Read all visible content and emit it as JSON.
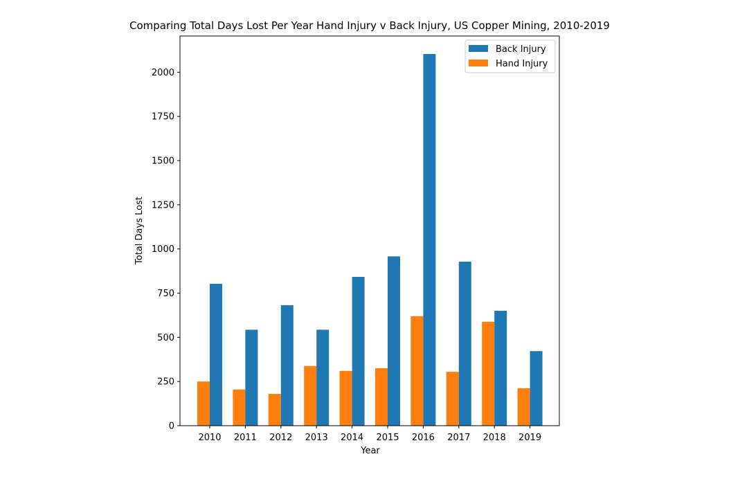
{
  "chart_data": {
    "type": "bar",
    "title": "Comparing Total Days Lost Per Year Hand Injury v Back Injury, US Copper Mining, 2010-2019",
    "xlabel": "Year",
    "ylabel": "Total Days Lost",
    "categories": [
      "2010",
      "2011",
      "2012",
      "2013",
      "2014",
      "2015",
      "2016",
      "2017",
      "2018",
      "2019"
    ],
    "ylim": [
      0,
      2205
    ],
    "yticks": [
      0,
      250,
      500,
      750,
      1000,
      1250,
      1500,
      1750,
      2000
    ],
    "grid": false,
    "legend_position": "top-right",
    "series": [
      {
        "name": "Hand Injury",
        "color": "#ff7f0e",
        "values": [
          250,
          205,
          180,
          338,
          310,
          325,
          620,
          305,
          588,
          212
        ]
      },
      {
        "name": "Back Injury",
        "color": "#1f77b4",
        "values": [
          803,
          543,
          682,
          543,
          842,
          958,
          2103,
          928,
          650,
          422
        ]
      }
    ],
    "legend_order": [
      "Back Injury",
      "Hand Injury"
    ]
  }
}
